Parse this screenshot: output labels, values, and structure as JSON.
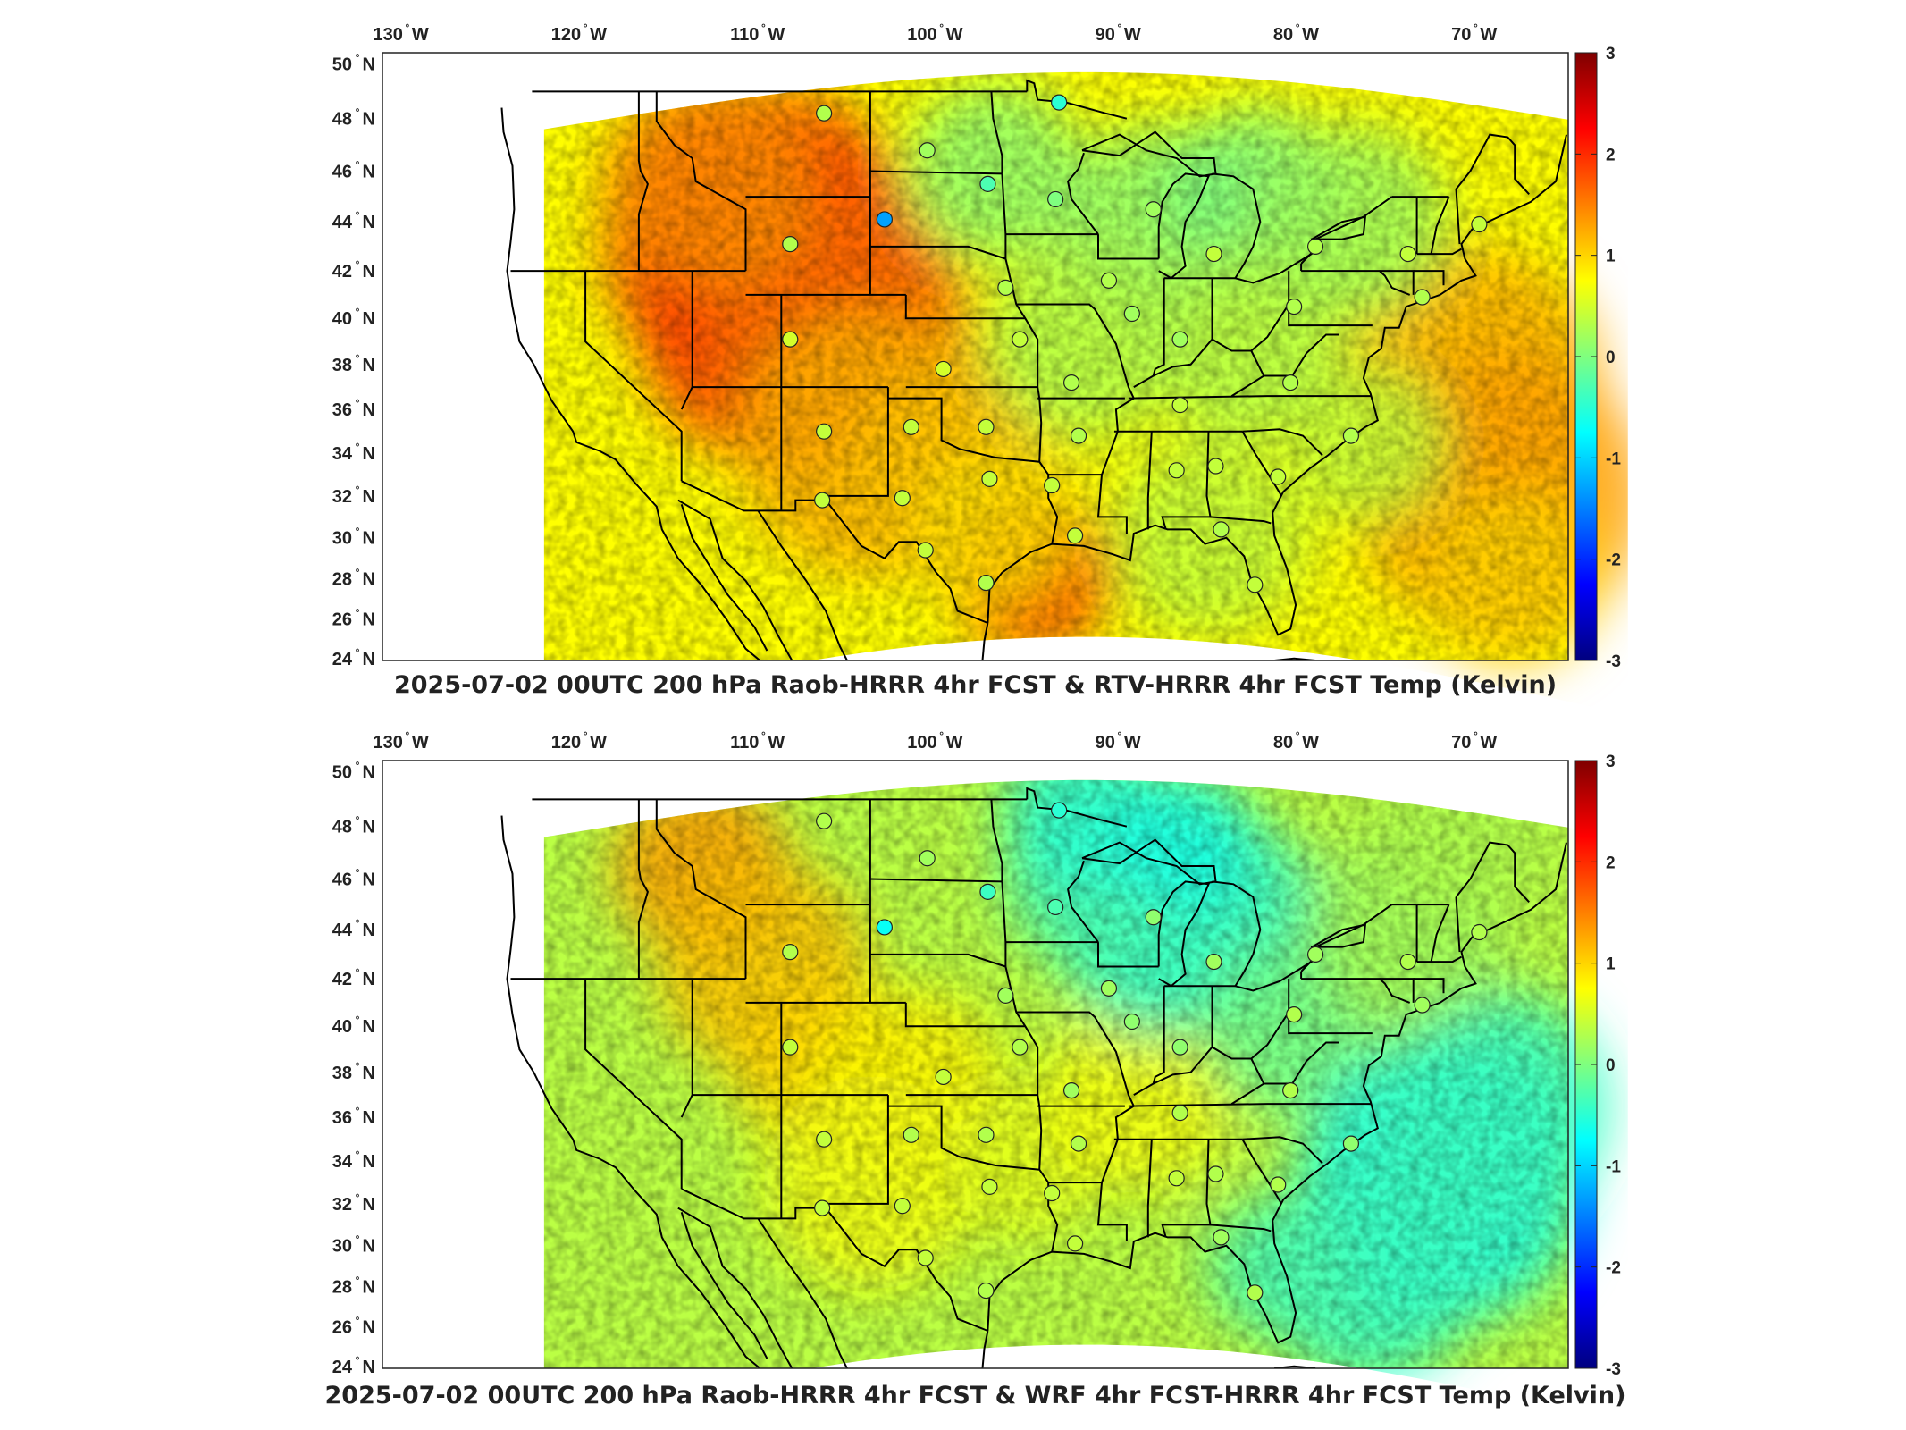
{
  "panels": [
    {
      "title": "2025-07-02 00UTC 200 hPa Raob-HRRR 4hr FCST & RTV-HRRR 4hr FCST Temp (Kelvin)",
      "theme": "warm"
    },
    {
      "title": "2025-07-02 00UTC 200 hPa Raob-HRRR 4hr FCST & WRF 4hr FCST-HRRR 4hr FCST Temp (Kelvin)",
      "theme": "cool"
    }
  ],
  "lon_labels": [
    "130",
    "120",
    "110",
    "100",
    "90",
    "80",
    "70"
  ],
  "lon_hemi": "W",
  "lat_labels": [
    "50",
    "48",
    "46",
    "44",
    "42",
    "40",
    "38",
    "36",
    "34",
    "32",
    "30",
    "28",
    "26",
    "24"
  ],
  "lat_hemi": "N",
  "colorbar": {
    "min": -3,
    "max": 3,
    "ticks": [
      "3",
      "2",
      "1",
      "0",
      "-1",
      "-2",
      "-3"
    ],
    "colormap": [
      "#00007f",
      "#0000ff",
      "#007fff",
      "#00ffff",
      "#7fff7f",
      "#ffff00",
      "#ff7f00",
      "#ff0000",
      "#7f0000"
    ]
  },
  "stations": [
    {
      "lon": -106.6,
      "lat": 48.2,
      "v1": 0.3,
      "v2": 0.3
    },
    {
      "lon": -93.4,
      "lat": 48.6,
      "v1": -0.5,
      "v2": -0.5
    },
    {
      "lon": -100.8,
      "lat": 46.8,
      "v1": 0.2,
      "v2": 0.2
    },
    {
      "lon": -97.4,
      "lat": 45.5,
      "v1": -0.3,
      "v2": -0.4
    },
    {
      "lon": -93.6,
      "lat": 44.9,
      "v1": 0.0,
      "v2": -0.3
    },
    {
      "lon": -103.2,
      "lat": 44.1,
      "v1": -1.3,
      "v2": -0.7
    },
    {
      "lon": -108.5,
      "lat": 43.1,
      "v1": 0.3,
      "v2": 0.3
    },
    {
      "lon": -88.1,
      "lat": 44.5,
      "v1": 0.2,
      "v2": 0.1
    },
    {
      "lon": -84.7,
      "lat": 42.7,
      "v1": 0.4,
      "v2": 0.2
    },
    {
      "lon": -79.0,
      "lat": 43.0,
      "v1": 0.3,
      "v2": 0.2
    },
    {
      "lon": -73.8,
      "lat": 42.7,
      "v1": 0.4,
      "v2": 0.3
    },
    {
      "lon": -69.8,
      "lat": 43.9,
      "v1": 0.4,
      "v2": 0.3
    },
    {
      "lon": -90.6,
      "lat": 41.6,
      "v1": 0.3,
      "v2": 0.2
    },
    {
      "lon": -96.4,
      "lat": 41.3,
      "v1": 0.3,
      "v2": 0.2
    },
    {
      "lon": -89.3,
      "lat": 40.2,
      "v1": 0.2,
      "v2": 0.1
    },
    {
      "lon": -80.2,
      "lat": 40.5,
      "v1": 0.3,
      "v2": 0.3
    },
    {
      "lon": -73.0,
      "lat": 40.9,
      "v1": 0.3,
      "v2": 0.2
    },
    {
      "lon": -108.5,
      "lat": 39.1,
      "v1": 0.5,
      "v2": 0.4
    },
    {
      "lon": -95.6,
      "lat": 39.1,
      "v1": 0.4,
      "v2": 0.3
    },
    {
      "lon": -99.9,
      "lat": 37.8,
      "v1": 0.5,
      "v2": 0.4
    },
    {
      "lon": -86.6,
      "lat": 39.1,
      "v1": 0.2,
      "v2": 0.1
    },
    {
      "lon": -92.7,
      "lat": 37.2,
      "v1": 0.3,
      "v2": 0.2
    },
    {
      "lon": -80.4,
      "lat": 37.2,
      "v1": 0.3,
      "v2": 0.3
    },
    {
      "lon": -86.6,
      "lat": 36.2,
      "v1": 0.4,
      "v2": 0.3
    },
    {
      "lon": -106.6,
      "lat": 35.0,
      "v1": 0.4,
      "v2": 0.4
    },
    {
      "lon": -101.7,
      "lat": 35.2,
      "v1": 0.4,
      "v2": 0.3
    },
    {
      "lon": -97.5,
      "lat": 35.2,
      "v1": 0.4,
      "v2": 0.3
    },
    {
      "lon": -92.3,
      "lat": 34.8,
      "v1": 0.3,
      "v2": 0.3
    },
    {
      "lon": -77.0,
      "lat": 34.8,
      "v1": 0.3,
      "v2": 0.1
    },
    {
      "lon": -86.8,
      "lat": 33.2,
      "v1": 0.4,
      "v2": 0.4
    },
    {
      "lon": -84.6,
      "lat": 33.4,
      "v1": 0.4,
      "v2": 0.3
    },
    {
      "lon": -81.1,
      "lat": 32.9,
      "v1": 0.4,
      "v2": 0.3
    },
    {
      "lon": -97.3,
      "lat": 32.8,
      "v1": 0.4,
      "v2": 0.4
    },
    {
      "lon": -93.8,
      "lat": 32.5,
      "v1": 0.4,
      "v2": 0.4
    },
    {
      "lon": -106.7,
      "lat": 31.8,
      "v1": 0.4,
      "v2": 0.4
    },
    {
      "lon": -102.2,
      "lat": 31.9,
      "v1": 0.4,
      "v2": 0.4
    },
    {
      "lon": -92.5,
      "lat": 30.1,
      "v1": 0.4,
      "v2": 0.4
    },
    {
      "lon": -84.3,
      "lat": 30.4,
      "v1": 0.3,
      "v2": 0.2
    },
    {
      "lon": -100.9,
      "lat": 29.4,
      "v1": 0.4,
      "v2": 0.4
    },
    {
      "lon": -97.5,
      "lat": 27.8,
      "v1": 0.3,
      "v2": 0.3
    },
    {
      "lon": -82.4,
      "lat": 27.7,
      "v1": 0.4,
      "v2": 0.3
    }
  ]
}
